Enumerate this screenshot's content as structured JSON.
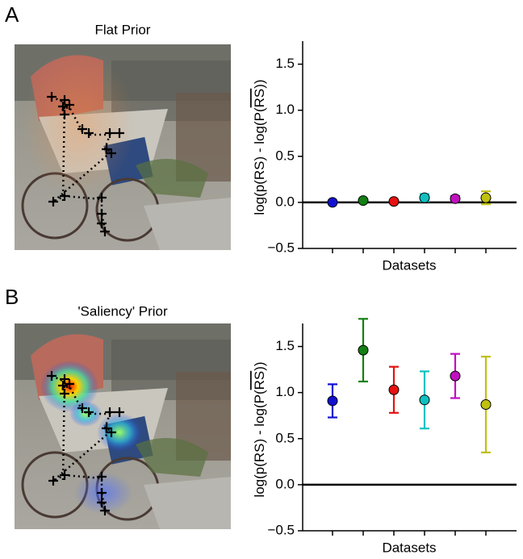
{
  "panels": [
    {
      "label": "A",
      "image_title": "Flat Prior"
    },
    {
      "label": "B",
      "image_title": "'Saliency' Prior"
    }
  ],
  "chart_data": [
    {
      "type": "errorbar",
      "ylabel": {
        "prefix": "log(p(RS) - log(P(",
        "overlined": "RS",
        "suffix": "))"
      },
      "xlabel": "Datasets",
      "categories": [
        null,
        null,
        null,
        null,
        null,
        null
      ],
      "values": [
        0.0,
        0.02,
        0.01,
        0.05,
        0.04,
        0.05
      ],
      "errors": [
        0.01,
        0.01,
        0.01,
        0.04,
        0.03,
        0.07
      ],
      "colors": [
        "#1010d0",
        "#128012",
        "#e81010",
        "#10c0c0",
        "#c010c0",
        "#c0c010"
      ],
      "ylim": [
        -0.5,
        1.75
      ],
      "yticks": [
        {
          "value": -0.5,
          "label": "−0.5"
        },
        {
          "value": 0,
          "label": "0.0"
        },
        0.5,
        {
          "value": 1,
          "label": "1.0"
        },
        1.5
      ],
      "zero_line": 0
    },
    {
      "type": "errorbar",
      "ylabel": {
        "prefix": "log(p(RS) - log(P(",
        "overlined": "RS",
        "suffix": "))"
      },
      "xlabel": "Datasets",
      "categories": [
        null,
        null,
        null,
        null,
        null,
        null
      ],
      "values": [
        0.91,
        1.46,
        1.03,
        0.92,
        1.18,
        0.87
      ],
      "errors": [
        0.18,
        0.34,
        0.25,
        0.31,
        0.24,
        0.52
      ],
      "colors": [
        "#1010d0",
        "#128012",
        "#e81010",
        "#10c0c0",
        "#c010c0",
        "#c0c010"
      ],
      "ylim": [
        -0.5,
        1.75
      ],
      "yticks": [
        {
          "value": -0.5,
          "label": "−0.5"
        },
        {
          "value": 0,
          "label": "0.0"
        },
        0.5,
        {
          "value": 1,
          "label": "1.0"
        },
        1.5
      ],
      "zero_line": 0
    }
  ]
}
